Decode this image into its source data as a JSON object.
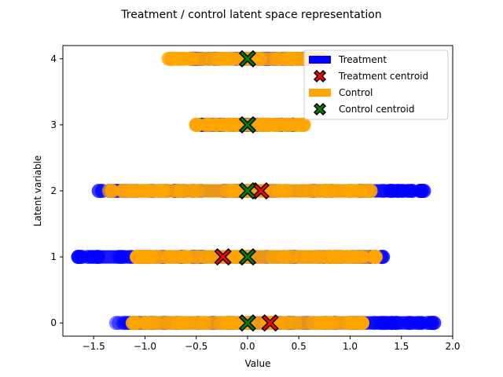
{
  "chart_data": {
    "type": "scatter",
    "title": "Treatment / control latent space representation",
    "xlabel": "Value",
    "ylabel": "Latent variable",
    "xlim": [
      -1.8,
      2.0
    ],
    "ylim": [
      -0.2,
      4.2
    ],
    "xticks": [
      -1.5,
      -1.0,
      -0.5,
      0.0,
      0.5,
      1.0,
      1.5,
      2.0
    ],
    "xtick_labels": [
      "−1.5",
      "−1.0",
      "−0.5",
      "0.0",
      "0.5",
      "1.0",
      "1.5",
      "2.0"
    ],
    "yticks": [
      0,
      1,
      2,
      3,
      4
    ],
    "ytick_labels": [
      "0",
      "1",
      "2",
      "3",
      "4"
    ],
    "grid": false,
    "legend_position": "top-right",
    "series": [
      {
        "name": "Treatment",
        "color": "#0000ff",
        "marker": "circle",
        "ranges": [
          {
            "latent": 0,
            "min": -1.28,
            "max": 1.82
          },
          {
            "latent": 1,
            "min": -1.65,
            "max": 1.32
          },
          {
            "latent": 2,
            "min": -1.45,
            "max": 1.72
          },
          {
            "latent": 3,
            "min": -0.45,
            "max": 0.45
          },
          {
            "latent": 4,
            "min": -0.55,
            "max": 0.6
          }
        ]
      },
      {
        "name": "Treatment centroid",
        "color": "#ff0000",
        "marker": "x",
        "points": [
          {
            "x": 0.22,
            "y": 0
          },
          {
            "x": -0.24,
            "y": 1
          },
          {
            "x": 0.13,
            "y": 2
          }
        ]
      },
      {
        "name": "Control",
        "color": "#ffa500",
        "marker": "circle",
        "ranges": [
          {
            "latent": 0,
            "min": -1.12,
            "max": 1.12
          },
          {
            "latent": 1,
            "min": -1.08,
            "max": 1.25
          },
          {
            "latent": 2,
            "min": -1.35,
            "max": 1.2
          },
          {
            "latent": 3,
            "min": -0.5,
            "max": 0.55
          },
          {
            "latent": 4,
            "min": -0.77,
            "max": 0.72
          }
        ]
      },
      {
        "name": "Control centroid",
        "color": "#008000",
        "marker": "x",
        "points": [
          {
            "x": 0.0,
            "y": 0
          },
          {
            "x": 0.0,
            "y": 1
          },
          {
            "x": 0.0,
            "y": 2
          },
          {
            "x": 0.0,
            "y": 3
          },
          {
            "x": 0.0,
            "y": 4
          }
        ]
      }
    ]
  }
}
